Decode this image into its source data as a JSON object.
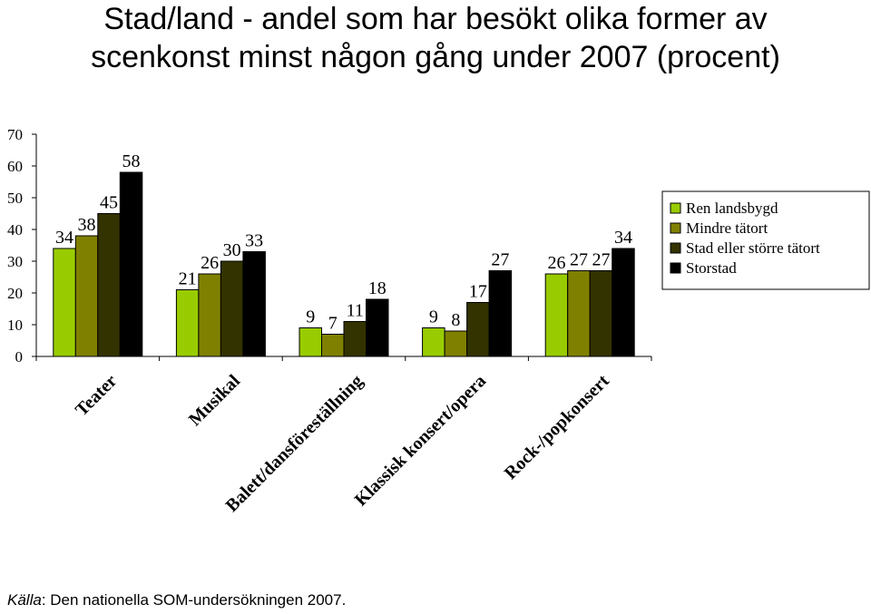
{
  "chart_data": {
    "type": "bar",
    "title_lines": [
      "Stad/land - andel som har besökt olika former av",
      "scenkonst minst någon gång under 2007 (procent)"
    ],
    "categories": [
      "Teater",
      "Musikal",
      "Balett/dansföreställning",
      "Klassisk konsert/opera",
      "Rock-/popkonsert"
    ],
    "series": [
      {
        "name": "Ren landsbygd",
        "color": "#99cc00",
        "values": [
          34,
          21,
          9,
          9,
          26
        ]
      },
      {
        "name": "Mindre tätort",
        "color": "#808000",
        "values": [
          38,
          26,
          7,
          8,
          27
        ]
      },
      {
        "name": "Stad eller större tätort",
        "color": "#333300",
        "values": [
          45,
          30,
          11,
          17,
          27
        ]
      },
      {
        "name": "Storstad",
        "color": "#000000",
        "values": [
          58,
          33,
          18,
          27,
          34
        ]
      }
    ],
    "ylim": [
      0,
      70
    ],
    "yticks": [
      0,
      10,
      20,
      30,
      40,
      50,
      60,
      70
    ],
    "legend_position": "right",
    "grid": false
  },
  "source": {
    "label": "Källa",
    "text": ": Den nationella SOM-undersökningen 2007."
  }
}
